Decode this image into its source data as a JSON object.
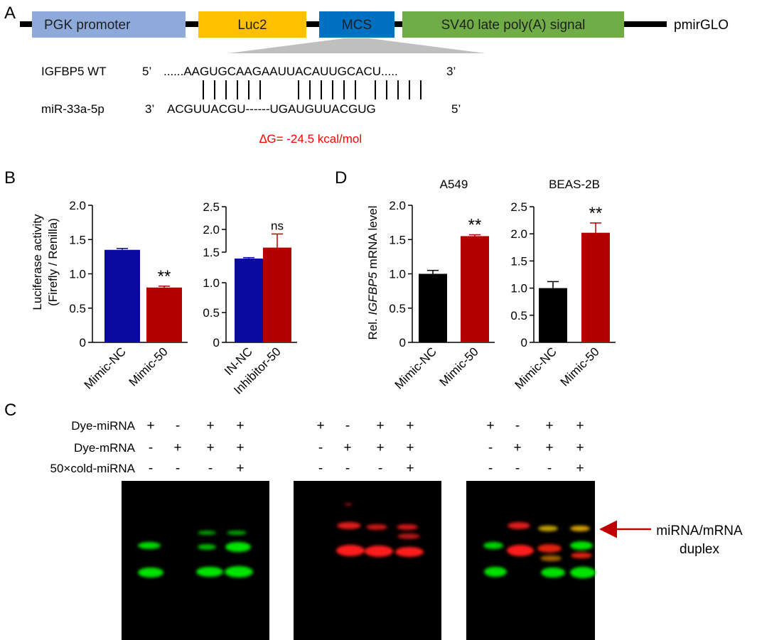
{
  "panel_labels": {
    "a": "A",
    "b": "B",
    "c": "C",
    "d": "D"
  },
  "construct": {
    "name": "pmirGLO",
    "segments": [
      {
        "label": "PGK promoter",
        "color": "#8eaadb"
      },
      {
        "label": "Luc2",
        "color": "#ffc000"
      },
      {
        "label": "MCS",
        "color": "#0070c0"
      },
      {
        "label": "SV40 late poly(A) signal",
        "color": "#70ad47"
      }
    ]
  },
  "alignment": {
    "target_name": "IGFBP5 WT",
    "target_end5": "5’",
    "target_seq": "......AAGUGCAAGAAUUACAUUGCACU.....",
    "target_end3": "3’",
    "mirna_name": "miR-33a-5p",
    "mirna_end3": "3’",
    "mirna_seq": "ACGUUACGU------UGAUGUUACGUG",
    "mirna_end5": "5’",
    "delta_g": "∆G= -24.5 kcal/mol"
  },
  "colors": {
    "blue_bar": "#0a0aa0",
    "red_bar": "#b30000",
    "black_bar": "#000000",
    "dg_text": "#ff0000",
    "arrow": "#c00000",
    "gel_green": "#00e000",
    "gel_red": "#ff1a1a"
  },
  "chart_data": [
    {
      "type": "bar",
      "panel": "B",
      "ylabel": "Luciferase activity (Firefly / Renilla)",
      "ylabel_lines": [
        "Luciferase activity",
        "(Firefly / Renilla)"
      ],
      "ylim": [
        0,
        2.0
      ],
      "yticks": [
        "0",
        "0.5",
        "1.0",
        "1.5",
        "2.0"
      ],
      "categories": [
        "Mimic-NC",
        "Mimic-50"
      ],
      "values": [
        1.35,
        0.8
      ],
      "errors": [
        0.02,
        0.02
      ],
      "annotation": "**"
    },
    {
      "type": "bar",
      "panel": "B",
      "ylim": [
        0,
        2.5
      ],
      "yticks": [
        "1.5",
        "2.0",
        "2.5"
      ],
      "yticks_lower": [
        "0",
        "0.5",
        "1.0"
      ],
      "categories": [
        "IN-NC",
        "Inhibitor-50"
      ],
      "values": [
        1.36,
        1.6
      ],
      "errors": [
        0.02,
        0.3
      ],
      "annotation": "ns"
    },
    {
      "type": "bar",
      "panel": "D",
      "title": "A549",
      "ylabel": "Rel. IGFBP5 mRNA level",
      "ylabel_pre": "Rel. ",
      "ylabel_italic": "IGFBP5",
      "ylabel_post": " mRNA level",
      "ylim": [
        0,
        2.0
      ],
      "yticks": [
        "0",
        "0.5",
        "1.0",
        "1.5",
        "2.0"
      ],
      "categories": [
        "Mimic-NC",
        "Mimic-50"
      ],
      "values": [
        1.0,
        1.55
      ],
      "errors": [
        0.05,
        0.02
      ],
      "annotation": "**"
    },
    {
      "type": "bar",
      "panel": "D",
      "title": "BEAS-2B",
      "ylim": [
        0,
        2.5
      ],
      "yticks": [
        "0",
        "0.5",
        "1.0",
        "1.5",
        "2.0",
        "2.5"
      ],
      "categories": [
        "Mimic-NC",
        "Mimic-50"
      ],
      "values": [
        1.0,
        2.02
      ],
      "errors": [
        0.12,
        0.18
      ],
      "annotation": "**"
    }
  ],
  "gel": {
    "row_labels": [
      "Dye-miRNA",
      "Dye-mRNA",
      "50×cold-miRNA"
    ],
    "lanes": [
      [
        "+",
        "-",
        "+",
        "+"
      ],
      [
        "-",
        "+",
        "+",
        "+"
      ],
      [
        "-",
        "-",
        "-",
        "+"
      ]
    ],
    "arrow_label_lines": [
      "miRNA/mRNA",
      "duplex"
    ]
  }
}
